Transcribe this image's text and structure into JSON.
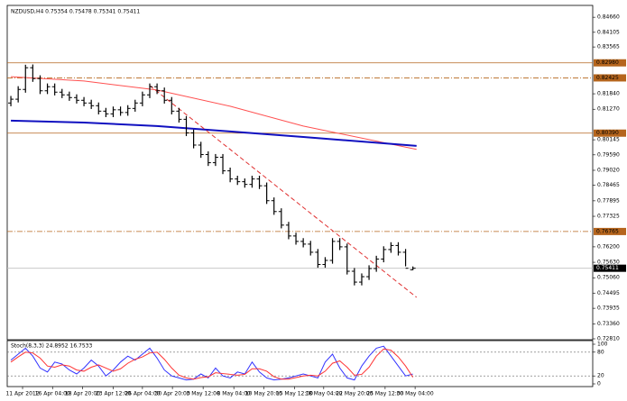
{
  "chart_data": [
    {
      "type": "candlestick",
      "title": "NZDUSD,H4  0.75354 0.75478 0.75341 0.75411",
      "color": "#000000",
      "xlim": [
        -0.5,
        79.6
      ],
      "ylim": [
        0.7281,
        0.8503
      ],
      "xticks": [
        {
          "value": 1.6,
          "label": "11 Apr 2012"
        },
        {
          "value": 5.7,
          "label": "16 Apr 04:00"
        },
        {
          "value": 9.8,
          "label": "18 Apr 20:00"
        },
        {
          "value": 14,
          "label": "23 Apr 12:00"
        },
        {
          "value": 18,
          "label": "26 Apr 04:00"
        },
        {
          "value": 22.1,
          "label": "30 Apr 20:00"
        },
        {
          "value": 26.3,
          "label": "3 May 12:00"
        },
        {
          "value": 30.5,
          "label": "8 May 04:00"
        },
        {
          "value": 34.6,
          "label": "10 May 20:00"
        },
        {
          "value": 38.8,
          "label": "15 May 12:00"
        },
        {
          "value": 42.8,
          "label": "18 May 04:00"
        },
        {
          "value": 47,
          "label": "22 May 20:00"
        },
        {
          "value": 51.2,
          "label": "25 May 12:00"
        },
        {
          "value": 55.3,
          "label": "30 May 04:00"
        }
      ],
      "yticks": [
        {
          "value": 0.8466,
          "label": "0.84660"
        },
        {
          "value": 0.84105,
          "label": "0.84105"
        },
        {
          "value": 0.83565,
          "label": "0.83565"
        },
        {
          "value": 0.8184,
          "label": "0.81840"
        },
        {
          "value": 0.8127,
          "label": "0.81270"
        },
        {
          "value": 0.80145,
          "label": "0.80145"
        },
        {
          "value": 0.7959,
          "label": "0.79590"
        },
        {
          "value": 0.7902,
          "label": "0.79020"
        },
        {
          "value": 0.78465,
          "label": "0.78465"
        },
        {
          "value": 0.77895,
          "label": "0.77895"
        },
        {
          "value": 0.77325,
          "label": "0.77325"
        },
        {
          "value": 0.762,
          "label": "0.76200"
        },
        {
          "value": 0.7563,
          "label": "0.75630"
        },
        {
          "value": 0.7506,
          "label": "0.75060"
        },
        {
          "value": 0.74495,
          "label": "0.74495"
        },
        {
          "value": 0.73935,
          "label": "0.73935"
        },
        {
          "value": 0.7336,
          "label": "0.73360"
        },
        {
          "value": 0.7281,
          "label": "0.72810"
        }
      ],
      "open": [
        0.815,
        0.8164,
        0.82,
        0.828,
        0.824,
        0.8195,
        0.821,
        0.819,
        0.818,
        0.817,
        0.816,
        0.815,
        0.814,
        0.812,
        0.811,
        0.8125,
        0.8115,
        0.813,
        0.815,
        0.818,
        0.821,
        0.8195,
        0.816,
        0.812,
        0.809,
        0.804,
        0.7995,
        0.796,
        0.793,
        0.795,
        0.79,
        0.787,
        0.786,
        0.785,
        0.787,
        0.7845,
        0.779,
        0.775,
        0.77,
        0.766,
        0.764,
        0.763,
        0.76,
        0.7555,
        0.757,
        0.764,
        0.762,
        0.753,
        0.749,
        0.751,
        0.754,
        0.7575,
        0.761,
        0.7625,
        0.76,
        0.75354
      ],
      "high": [
        0.8176,
        0.8212,
        0.8291,
        0.8292,
        0.8252,
        0.8222,
        0.8222,
        0.8202,
        0.8192,
        0.8182,
        0.8172,
        0.8162,
        0.8152,
        0.8132,
        0.8137,
        0.8137,
        0.8142,
        0.8162,
        0.8192,
        0.8222,
        0.8222,
        0.8207,
        0.8172,
        0.8132,
        0.8102,
        0.8052,
        0.8007,
        0.7972,
        0.7962,
        0.7962,
        0.7912,
        0.7882,
        0.7872,
        0.7882,
        0.7882,
        0.7857,
        0.7802,
        0.7762,
        0.7712,
        0.7672,
        0.7652,
        0.7642,
        0.7612,
        0.7582,
        0.7652,
        0.7652,
        0.7632,
        0.7542,
        0.7522,
        0.7552,
        0.7587,
        0.7622,
        0.7637,
        0.7637,
        0.7612,
        0.75478
      ],
      "low": [
        0.8138,
        0.8152,
        0.8188,
        0.8228,
        0.8183,
        0.8183,
        0.8178,
        0.8168,
        0.8158,
        0.8148,
        0.8138,
        0.8128,
        0.8108,
        0.8098,
        0.8098,
        0.8103,
        0.8103,
        0.8118,
        0.8138,
        0.8168,
        0.8183,
        0.8148,
        0.8108,
        0.8078,
        0.8028,
        0.7983,
        0.7948,
        0.7918,
        0.7918,
        0.7888,
        0.7858,
        0.7848,
        0.7838,
        0.7838,
        0.7833,
        0.7778,
        0.7738,
        0.7688,
        0.7648,
        0.7628,
        0.7618,
        0.7588,
        0.7543,
        0.7543,
        0.7558,
        0.7608,
        0.7518,
        0.7478,
        0.7478,
        0.7498,
        0.7528,
        0.7563,
        0.7598,
        0.7588,
        0.7548,
        0.75341
      ],
      "close": [
        0.8164,
        0.82,
        0.828,
        0.824,
        0.8195,
        0.821,
        0.819,
        0.818,
        0.817,
        0.816,
        0.815,
        0.814,
        0.812,
        0.811,
        0.8125,
        0.8115,
        0.813,
        0.815,
        0.818,
        0.821,
        0.8195,
        0.816,
        0.812,
        0.809,
        0.804,
        0.7995,
        0.796,
        0.793,
        0.795,
        0.79,
        0.787,
        0.786,
        0.785,
        0.787,
        0.7845,
        0.779,
        0.775,
        0.77,
        0.766,
        0.764,
        0.763,
        0.76,
        0.7555,
        0.757,
        0.764,
        0.762,
        0.753,
        0.749,
        0.751,
        0.754,
        0.7575,
        0.761,
        0.7625,
        0.76,
        0.7541,
        0.75411
      ],
      "overlays": [
        {
          "color": "#ff5050",
          "style": "solid",
          "x": [
            0,
            10,
            20,
            30,
            40,
            55.5
          ],
          "values": [
            0.8247,
            0.8231,
            0.8198,
            0.8138,
            0.8065,
            0.7979
          ]
        },
        {
          "color": "#1010c0",
          "style": "solid",
          "x": [
            0,
            10,
            20,
            30,
            40,
            55.5
          ],
          "values": [
            0.8085,
            0.8078,
            0.8065,
            0.8045,
            0.8025,
            0.7992
          ]
        },
        {
          "color": "#e03030",
          "style": "dashed",
          "x": [
            19,
            55.5
          ],
          "values": [
            0.8214,
            0.7434
          ]
        }
      ],
      "levels": [
        {
          "value": 0.8298,
          "label": "0.82980",
          "style": "solid"
        },
        {
          "value": 0.82425,
          "label": "0.82425",
          "style": "dashdot"
        },
        {
          "value": 0.8039,
          "label": "0.80390",
          "style": "solid"
        },
        {
          "value": 0.76765,
          "label": "0.76765",
          "style": "dashdot"
        }
      ],
      "level_color": "#b5651d",
      "current_price": {
        "value": 0.75411,
        "label": "0.75411"
      }
    },
    {
      "type": "line",
      "title": "Stoch(8,3,3) 24.8952 16.7533",
      "xlim": [
        -0.5,
        79.6
      ],
      "ylim": [
        0,
        100
      ],
      "yticks": [
        0,
        20,
        80,
        100
      ],
      "levels": [
        20,
        80
      ],
      "series": [
        {
          "color": "#3333ff",
          "values": [
            60,
            75,
            90,
            70,
            40,
            30,
            55,
            50,
            35,
            25,
            40,
            60,
            45,
            20,
            35,
            55,
            70,
            60,
            75,
            90,
            65,
            35,
            20,
            15,
            10,
            12,
            25,
            15,
            40,
            20,
            15,
            30,
            25,
            55,
            30,
            15,
            10,
            12,
            15,
            20,
            25,
            20,
            15,
            55,
            75,
            40,
            15,
            10,
            45,
            70,
            90,
            95,
            70,
            45,
            20,
            24.8952
          ]
        },
        {
          "color": "#ff3333",
          "values": [
            55,
            68,
            80,
            78,
            65,
            45,
            42,
            48,
            45,
            35,
            32,
            42,
            48,
            40,
            32,
            38,
            52,
            62,
            68,
            78,
            80,
            62,
            40,
            22,
            15,
            12,
            16,
            18,
            28,
            26,
            24,
            22,
            24,
            38,
            38,
            32,
            18,
            12,
            12,
            16,
            20,
            22,
            20,
            32,
            52,
            58,
            42,
            22,
            24,
            42,
            70,
            88,
            85,
            68,
            45,
            16.7533
          ]
        }
      ]
    }
  ]
}
